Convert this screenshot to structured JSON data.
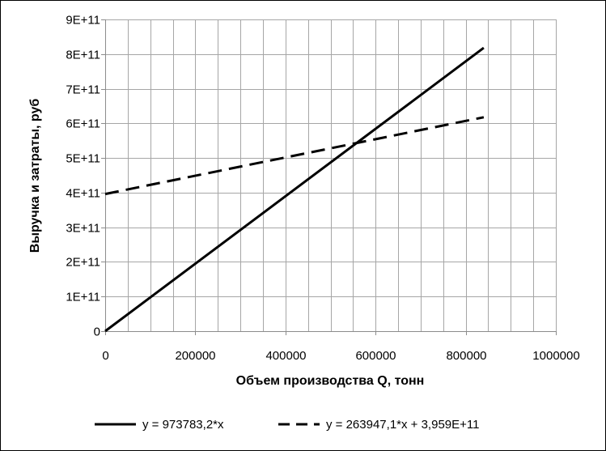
{
  "chart_data": {
    "type": "line",
    "xlabel": "Объем производства Q, тонн",
    "ylabel": "Выручка и затраты, руб",
    "xlim": [
      0,
      1000000
    ],
    "ylim": [
      0,
      900000000000
    ],
    "x_ticks": [
      0,
      200000,
      400000,
      600000,
      800000,
      1000000
    ],
    "x_tick_labels": [
      "0",
      "200000",
      "400000",
      "600000",
      "800000",
      "1000000"
    ],
    "y_ticks": [
      0,
      100000000000,
      200000000000,
      300000000000,
      400000000000,
      500000000000,
      600000000000,
      700000000000,
      800000000000,
      900000000000
    ],
    "y_tick_labels": [
      "0",
      "1E+11",
      "2E+11",
      "3E+11",
      "4E+11",
      "5E+11",
      "6E+11",
      "7E+11",
      "8E+11",
      "9E+11"
    ],
    "x_minor_step": 50000,
    "grid": true,
    "legend_position": "bottom",
    "series": [
      {
        "name": "y = 973783,2*x",
        "style": "solid",
        "color": "#000000",
        "x": [
          0,
          840000
        ],
        "y": [
          0,
          818000000000
        ]
      },
      {
        "name": "y = 263947,1*x + 3,959E+11",
        "style": "dashed",
        "color": "#000000",
        "x": [
          0,
          840000
        ],
        "y": [
          395900000000,
          617600000000
        ]
      }
    ]
  }
}
